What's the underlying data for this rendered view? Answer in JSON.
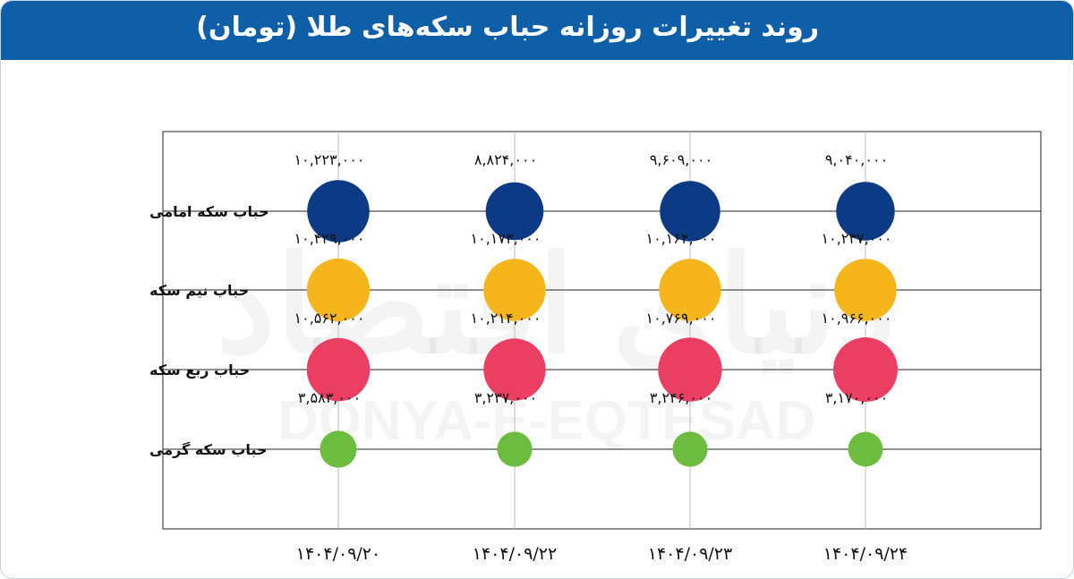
{
  "title": "روند تغییرات روزانه حباب سکه‌های طلا (تومان)",
  "watermark": {
    "persian": "دنیای اقتصاد",
    "latin": "DONYA-E-EQTESAD"
  },
  "colors": {
    "header": "#0f5ea8",
    "grid": "#222222",
    "emami": "#0d3a84",
    "nim": "#f6b61b",
    "rob": "#ea3f62",
    "gerami": "#6cbd3f"
  },
  "chart_data": {
    "type": "scatter",
    "title": "روند تغییرات روزانه حباب سکه‌های طلا (تومان)",
    "categories": [
      "۱۴۰۴/۰۹/۲۰",
      "۱۴۰۴/۰۹/۲۲",
      "۱۴۰۴/۰۹/۲۳",
      "۱۴۰۴/۰۹/۲۴"
    ],
    "series": [
      {
        "name": "حباب سکه امامی",
        "color": "#0d3a84",
        "values": [
          10223000,
          8824000,
          9609000,
          9040000
        ],
        "labels": [
          "۱۰,۲۲۳,۰۰۰",
          "۸,۸۲۴,۰۰۰",
          "۹,۶۰۹,۰۰۰",
          "۹,۰۴۰,۰۰۰"
        ]
      },
      {
        "name": "حباب نیم سکه",
        "color": "#f6b61b",
        "values": [
          10429000,
          10173000,
          10164000,
          10237000
        ],
        "labels": [
          "۱۰,۴۲۹,۰۰۰",
          "۱۰,۱۷۳,۰۰۰",
          "۱۰,۱۶۴,۰۰۰",
          "۱۰,۲۳۷,۰۰۰"
        ]
      },
      {
        "name": "حباب ربع سکه",
        "color": "#ea3f62",
        "values": [
          10562000,
          10214000,
          10769000,
          10966000
        ],
        "labels": [
          "۱۰,۵۶۲,۰۰۰",
          "۱۰,۲۱۴,۰۰۰",
          "۱۰,۷۶۹,۰۰۰",
          "۱۰,۹۶۶,۰۰۰"
        ]
      },
      {
        "name": "حباب سکه گرمی",
        "color": "#6cbd3f",
        "values": [
          3583000,
          3237000,
          3246000,
          3170000
        ],
        "labels": [
          "۳,۵۸۳,۰۰۰",
          "۳,۲۳۷,۰۰۰",
          "۳,۲۴۶,۰۰۰",
          "۳,۱۷۰,۰۰۰"
        ]
      }
    ],
    "encoding": "bubble size proportional to value",
    "grid": true,
    "legend": "none"
  }
}
